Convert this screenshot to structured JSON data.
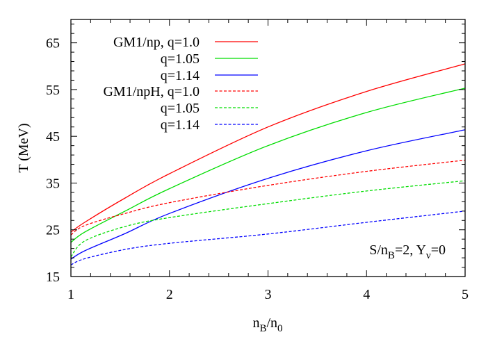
{
  "chart_data": {
    "type": "line",
    "title": "",
    "xlabel": "n_B/n_0",
    "ylabel": "T (MeV)",
    "xlim": [
      1,
      5
    ],
    "ylim": [
      15,
      70
    ],
    "xticks": [
      1,
      2,
      3,
      4,
      5
    ],
    "yticks": [
      15,
      25,
      35,
      45,
      55,
      65
    ],
    "x_minor_step": 0.2,
    "y_minor_step": 2,
    "grid": false,
    "legend_position": "upper-left",
    "annotation": {
      "text": "S/n_B=2, Y_ν=0",
      "main": "S/n",
      "sub1": "B",
      "mid": "=2, Y",
      "sub2": "ν",
      "end": "=0"
    },
    "x": [
      1.0,
      1.14,
      1.55,
      2.0,
      3.0,
      4.0,
      5.0
    ],
    "series": [
      {
        "name": "GM1/np, q=1.0",
        "label": "GM1/np, q=1.0",
        "color": "#ff0000",
        "dash": "solid",
        "values": [
          24.5,
          26.6,
          31.8,
          37.0,
          47.0,
          54.6,
          60.5
        ]
      },
      {
        "name": "GM1/np, q=1.05",
        "label": "q=1.05",
        "color": "#00dd00",
        "dash": "solid",
        "values": [
          22.3,
          24.5,
          29.0,
          33.8,
          43.0,
          50.1,
          55.3
        ]
      },
      {
        "name": "GM1/np, q=1.14",
        "label": "q=1.14",
        "color": "#0000ff",
        "dash": "solid",
        "values": [
          18.7,
          20.5,
          24.2,
          28.5,
          36.0,
          41.9,
          46.4
        ]
      },
      {
        "name": "GM1/npH, q=1.0",
        "label": "GM1/npH, q=1.0",
        "color": "#ff0000",
        "dash": "dashed",
        "values": [
          23.9,
          25.9,
          28.5,
          30.8,
          34.5,
          37.5,
          39.9
        ]
      },
      {
        "name": "GM1/npH, q=1.05",
        "label": "q=1.05",
        "color": "#00dd00",
        "dash": "dashed",
        "values": [
          19.2,
          22.6,
          25.7,
          27.6,
          30.6,
          33.3,
          35.5
        ]
      },
      {
        "name": "GM1/npH, q=1.14",
        "label": "q=1.14",
        "color": "#0000ff",
        "dash": "dashed",
        "values": [
          17.5,
          18.8,
          20.8,
          22.1,
          24.1,
          26.6,
          29.0
        ]
      }
    ]
  },
  "labels": {
    "ylabel": "T (MeV)",
    "xlabel_main": "n",
    "xlabel_sub1": "B",
    "xlabel_mid": "/n",
    "xlabel_sub2": "0"
  }
}
